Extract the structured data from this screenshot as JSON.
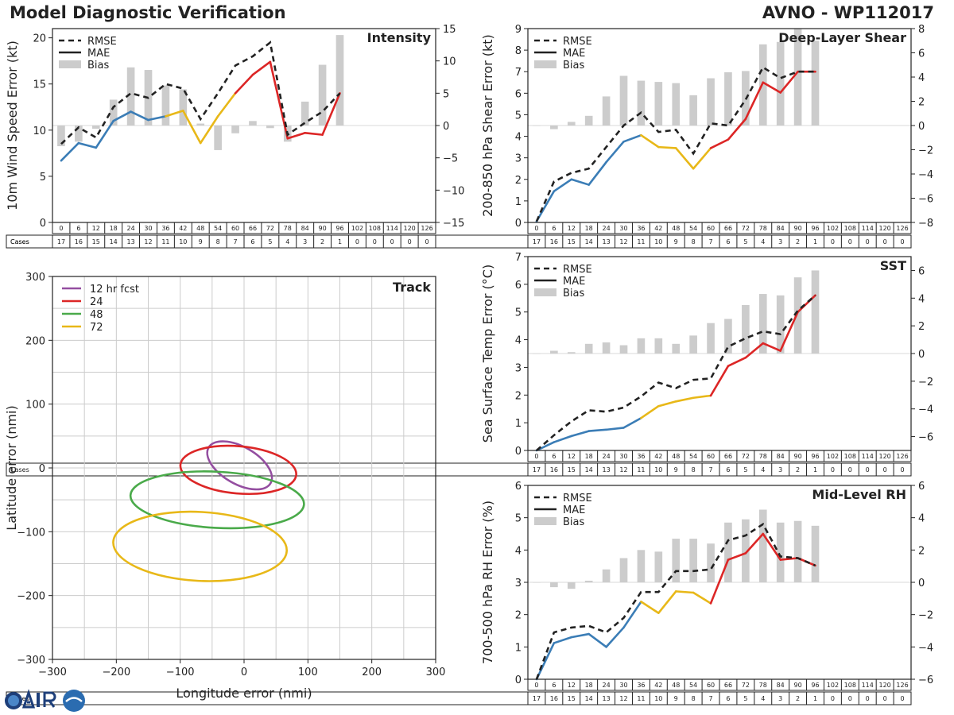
{
  "header": {
    "title": "Model Diagnostic Verification",
    "storm": "AVNO - WP112017"
  },
  "colors": {
    "blue": "#3b7db6",
    "yellow": "#e8b818",
    "red": "#dc2626",
    "rmse": "#222222",
    "bias": "#cccccc",
    "purple": "#944ea0",
    "green": "#4aaa4a"
  },
  "lead_times": [
    "0",
    "6",
    "12",
    "18",
    "24",
    "30",
    "36",
    "42",
    "48",
    "54",
    "60",
    "66",
    "72",
    "78",
    "84",
    "90",
    "96",
    "102",
    "108",
    "114",
    "120",
    "126"
  ],
  "cases": {
    "label": "Cases",
    "values": [
      "17",
      "16",
      "15",
      "14",
      "13",
      "12",
      "11",
      "10",
      "9",
      "8",
      "7",
      "6",
      "5",
      "4",
      "3",
      "2",
      "1",
      "0",
      "0",
      "0",
      "0",
      "0"
    ]
  },
  "legend": {
    "rmse": "RMSE",
    "mae": "MAE",
    "bias": "Bias"
  },
  "chart_data": [
    {
      "type": "line",
      "title": "Intensity",
      "ylabel": "10m Wind Speed Error (kt)",
      "ylim": [
        0,
        21
      ],
      "yticks": [
        0,
        5,
        10,
        15,
        20
      ],
      "y2lim": [
        -15,
        15
      ],
      "y2ticks": [
        -15,
        -10,
        -5,
        0,
        5,
        10,
        15
      ],
      "rmse": [
        8.5,
        10.3,
        9.2,
        12.5,
        14,
        13.5,
        15,
        14.5,
        11.2,
        14,
        17,
        18,
        19.5,
        9.5,
        10.8,
        12,
        14
      ],
      "mae": [
        6.7,
        8.6,
        8.1,
        11,
        12,
        11.1,
        11.5,
        12.1,
        8.6,
        11.5,
        14,
        16,
        17.4,
        9.1,
        9.7,
        9.5,
        14
      ],
      "bias": [
        -3.2,
        -2.5,
        -0.5,
        4,
        9,
        8.6,
        6.2,
        5.6,
        0.3,
        -3.8,
        -1.2,
        0.7,
        -0.4,
        -2.5,
        3.7,
        9.4,
        14
      ]
    },
    {
      "type": "line",
      "title": "Deep-Layer Shear",
      "ylabel": "200-850 hPa Shear Error (kt)",
      "ylim": [
        0,
        9
      ],
      "yticks": [
        0,
        1,
        2,
        3,
        4,
        5,
        6,
        7,
        8,
        9
      ],
      "y2lim": [
        -8,
        8
      ],
      "y2ticks": [
        -8,
        -6,
        -4,
        -2,
        0,
        2,
        4,
        6,
        8
      ],
      "rmse": [
        0.05,
        1.9,
        2.3,
        2.5,
        3.5,
        4.5,
        5.1,
        4.2,
        4.3,
        3.2,
        4.6,
        4.5,
        5.7,
        7.2,
        6.7,
        7,
        7
      ],
      "mae": [
        0.05,
        1.45,
        2,
        1.75,
        2.8,
        3.75,
        4.05,
        3.5,
        3.45,
        2.5,
        3.45,
        3.85,
        4.8,
        6.5,
        6.03,
        7,
        7
      ],
      "bias": [
        0,
        -0.3,
        0.3,
        0.8,
        2.4,
        4.1,
        3.7,
        3.6,
        3.5,
        2.5,
        3.9,
        4.4,
        4.5,
        6.7,
        6.9,
        8,
        7
      ]
    },
    {
      "type": "line",
      "title": "SST",
      "ylabel": "Sea Surface Temp Error (°C)",
      "ylim": [
        0,
        7
      ],
      "yticks": [
        0,
        1,
        2,
        3,
        4,
        5,
        6,
        7
      ],
      "y2lim": [
        -7,
        7
      ],
      "y2ticks": [
        -6,
        -4,
        -2,
        0,
        2,
        4,
        6
      ],
      "rmse": [
        0,
        0.55,
        1.05,
        1.45,
        1.4,
        1.55,
        1.95,
        2.45,
        2.25,
        2.55,
        2.6,
        3.75,
        4.05,
        4.3,
        4.2,
        5.05,
        5.6
      ],
      "mae": [
        0,
        0.3,
        0.52,
        0.7,
        0.75,
        0.82,
        1.17,
        1.6,
        1.77,
        1.9,
        1.98,
        3.05,
        3.35,
        3.87,
        3.6,
        5,
        5.6
      ],
      "bias": [
        0,
        0.2,
        0.1,
        0.7,
        0.8,
        0.6,
        1.1,
        1.1,
        0.7,
        1.3,
        2.2,
        2.5,
        3.5,
        4.3,
        4.2,
        5.5,
        6
      ]
    },
    {
      "type": "line",
      "title": "Mid-Level RH",
      "ylabel": "700-500 hPa RH Error (%)",
      "ylim": [
        0,
        6
      ],
      "yticks": [
        0,
        1,
        2,
        3,
        4,
        5,
        6
      ],
      "y2lim": [
        -6,
        6
      ],
      "y2ticks": [
        -6,
        -4,
        -2,
        0,
        2,
        4,
        6
      ],
      "rmse": [
        0,
        1.45,
        1.6,
        1.65,
        1.45,
        1.9,
        2.7,
        2.7,
        3.35,
        3.35,
        3.4,
        4.3,
        4.45,
        4.8,
        3.8,
        3.75,
        3.52
      ],
      "mae": [
        0,
        1.12,
        1.3,
        1.4,
        1,
        1.6,
        2.4,
        2.05,
        2.72,
        2.68,
        2.35,
        3.7,
        3.9,
        4.5,
        3.7,
        3.75,
        3.52
      ],
      "bias": [
        0,
        -0.3,
        -0.4,
        0.1,
        0.8,
        1.5,
        2,
        1.9,
        2.7,
        2.7,
        2.4,
        3.7,
        3.9,
        4.5,
        3.7,
        3.8,
        3.5
      ]
    },
    {
      "type": "scatter",
      "title": "Track",
      "xlabel": "Longitude error (nmi)",
      "ylabel": "Latitude error (nmi)",
      "xlim": [
        -300,
        300
      ],
      "ylim": [
        -300,
        300
      ],
      "xticks": [
        -300,
        -200,
        -100,
        0,
        100,
        200,
        300
      ],
      "yticks": [
        -300,
        -200,
        -100,
        0,
        100,
        200,
        300
      ],
      "series": [
        {
          "name": "12 hr fcst",
          "cx": -7,
          "cy": 4,
          "rx": 56,
          "ry": 29,
          "rot": 30
        },
        {
          "name": "24",
          "cx": -9,
          "cy": -3,
          "rx": 91,
          "ry": 37,
          "rot": 5
        },
        {
          "name": "48",
          "cx": -42,
          "cy": -50,
          "rx": 136,
          "ry": 44,
          "rot": 3
        },
        {
          "name": "72",
          "cx": -69,
          "cy": -123,
          "rx": 136,
          "ry": 54,
          "rot": 3
        }
      ]
    }
  ]
}
